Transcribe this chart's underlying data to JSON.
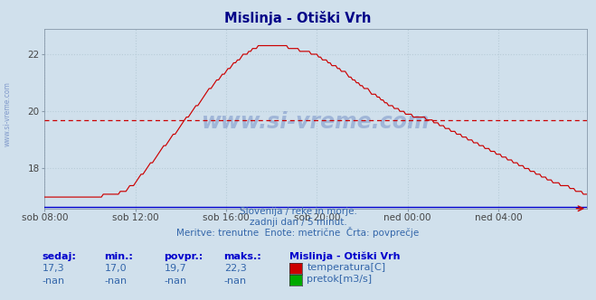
{
  "title": "Mislinja - Otiški Vrh",
  "bg_color": "#d0e0ec",
  "plot_bg_color": "#d0e0ec",
  "line_color": "#cc0000",
  "flow_line_color": "#0000cc",
  "avg_line_value": 19.7,
  "avg_dashed_color": "#cc0000",
  "x_tick_labels": [
    "sob 08:00",
    "sob 12:00",
    "sob 16:00",
    "sob 20:00",
    "ned 00:00",
    "ned 04:00"
  ],
  "x_tick_positions": [
    0,
    48,
    96,
    144,
    192,
    240
  ],
  "y_ticks": [
    18,
    20,
    22
  ],
  "y_min": 16.6,
  "y_max": 22.9,
  "grid_color": "#b8ccd8",
  "subtitle1": "Slovenija / reke in morje.",
  "subtitle2": "zadnji dan / 5 minut.",
  "subtitle3": "Meritve: trenutne  Enote: metrične  Črta: povprečje",
  "label_sedaj": "sedaj:",
  "label_min": "min.:",
  "label_povpr": "povpr.:",
  "label_maks": "maks.:",
  "val_sedaj": "17,3",
  "val_min": "17,0",
  "val_povpr": "19,7",
  "val_maks": "22,3",
  "val_sedaj2": "-nan",
  "val_min2": "-nan",
  "val_povpr2": "-nan",
  "val_maks2": "-nan",
  "legend_title": "Mislinja - Otiški Vrh",
  "legend1": "temperatura[C]",
  "legend2": "pretok[m3/s]",
  "legend_color1": "#cc0000",
  "legend_color2": "#00aa00",
  "watermark_color": "#3355aa",
  "title_color": "#000088",
  "subtitle_color": "#3366aa",
  "stats_label_color": "#0000cc",
  "stats_val_color": "#3366aa"
}
